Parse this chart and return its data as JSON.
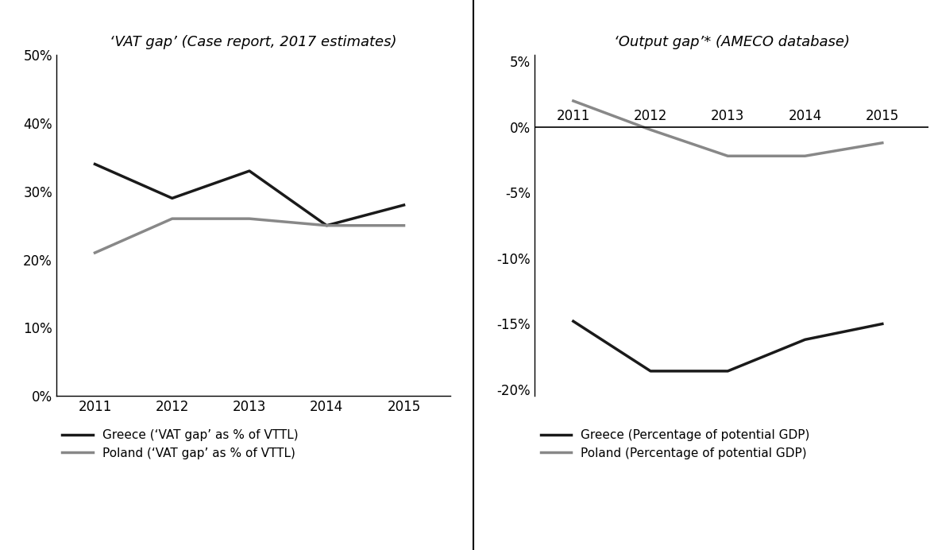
{
  "years": [
    2011,
    2012,
    2013,
    2014,
    2015
  ],
  "vat_greece": [
    0.34,
    0.29,
    0.33,
    0.25,
    0.28
  ],
  "vat_poland": [
    0.21,
    0.26,
    0.26,
    0.25,
    0.25
  ],
  "output_greece": [
    -0.148,
    -0.186,
    -0.186,
    -0.162,
    -0.15
  ],
  "output_poland": [
    0.02,
    -0.002,
    -0.022,
    -0.022,
    -0.012
  ],
  "vat_title": "‘VAT gap’ (Case report, 2017 estimates)",
  "output_title": "‘Output gap’* (AMECO database)",
  "vat_ylim": [
    0.0,
    0.5
  ],
  "output_ylim": [
    -0.205,
    0.055
  ],
  "vat_yticks": [
    0.0,
    0.1,
    0.2,
    0.3,
    0.4,
    0.5
  ],
  "output_yticks": [
    -0.2,
    -0.15,
    -0.1,
    -0.05,
    0.0,
    0.05
  ],
  "greece_color": "#1a1a1a",
  "poland_color": "#888888",
  "line_width": 2.5,
  "legend_vat_greece": "Greece (‘VAT gap’ as % of VTTL)",
  "legend_vat_poland": "Poland (‘VAT gap’ as % of VTTL)",
  "legend_out_greece": "Greece (Percentage of potential GDP)",
  "legend_out_poland": "Poland (Percentage of potential GDP)",
  "fontsize_tick": 12,
  "fontsize_title": 13,
  "fontsize_legend": 11
}
